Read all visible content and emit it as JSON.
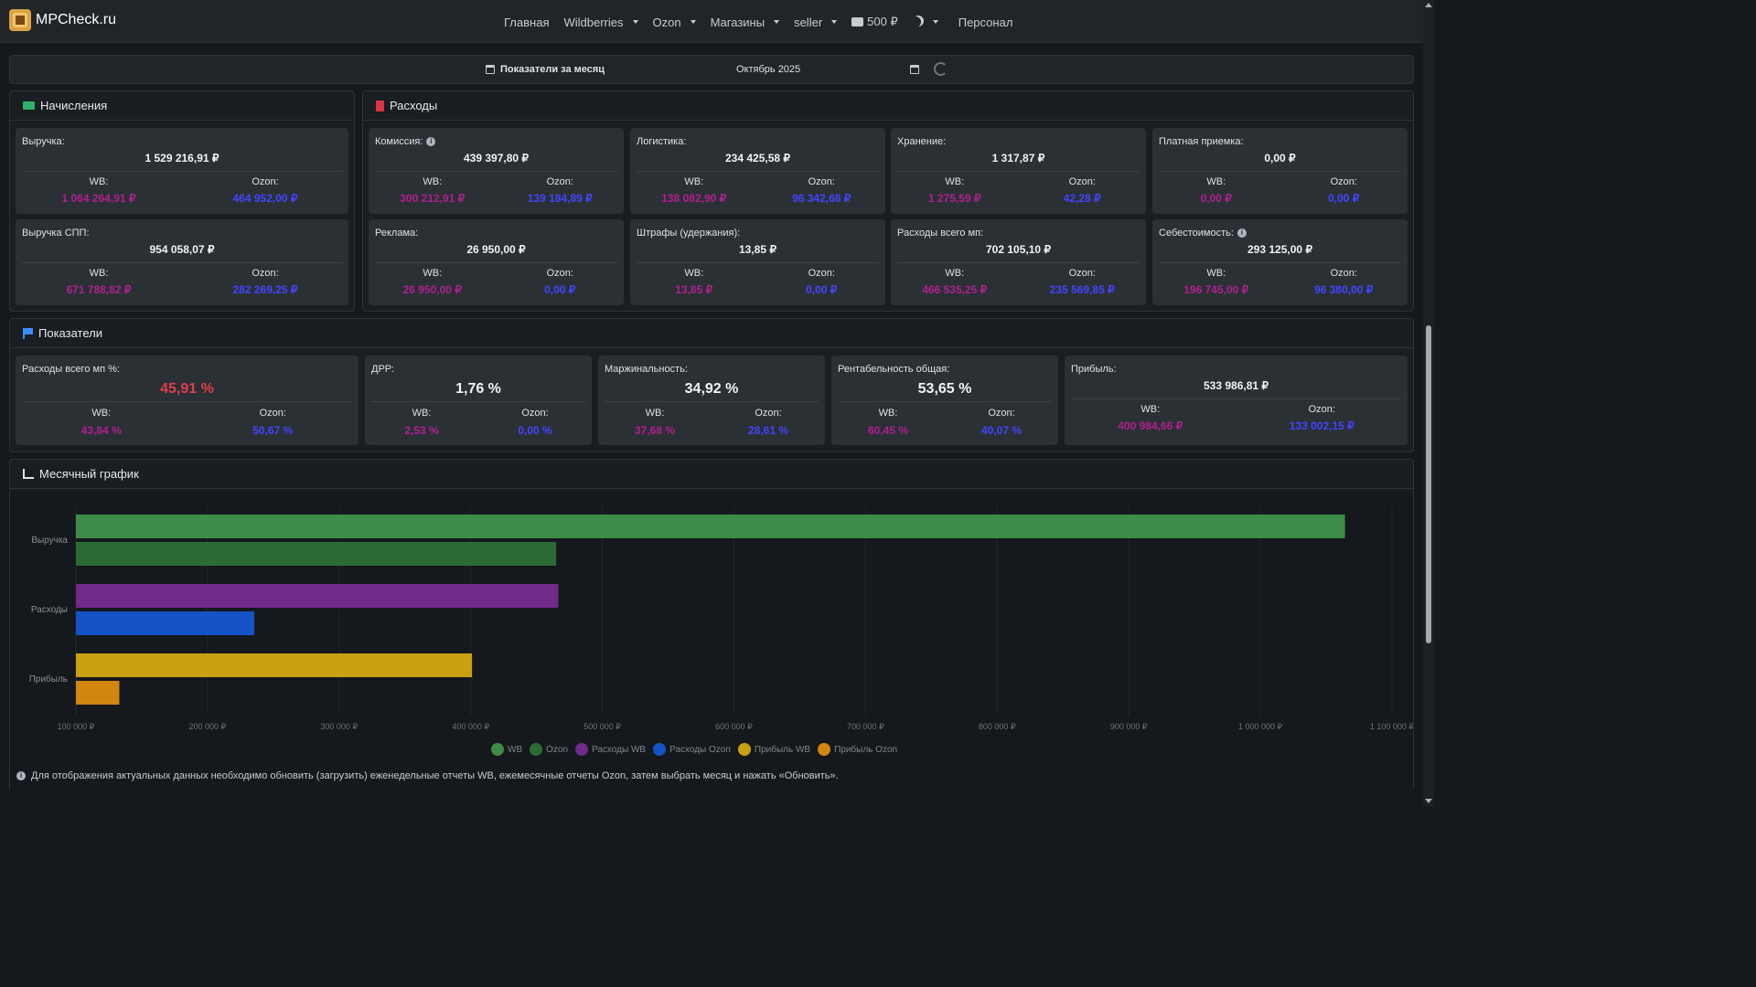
{
  "navbar": {
    "brand": "MPCheck.ru",
    "items": [
      {
        "label": "Главная",
        "dropdown": false
      },
      {
        "label": "Wildberries",
        "dropdown": true
      },
      {
        "label": "Ozon",
        "dropdown": true
      },
      {
        "label": "Магазины",
        "dropdown": true
      },
      {
        "label": "seller",
        "dropdown": true
      }
    ],
    "balance": "500 ₽",
    "personal": "Персонал"
  },
  "period": {
    "label": "Показатели за месяц",
    "value": "Октябрь 2025"
  },
  "accruals": {
    "title": "Начисления",
    "cards": [
      {
        "label": "Выручка:",
        "total": "1 529 216,91 ₽",
        "wb_label": "WB:",
        "wb": "1 064 264,91 ₽",
        "ozon_label": "Ozon:",
        "ozon": "464 952,00 ₽"
      },
      {
        "label": "Выручка СПП:",
        "total": "954 058,07 ₽",
        "wb_label": "WB:",
        "wb": "671 788,82 ₽",
        "ozon_label": "Ozon:",
        "ozon": "282 269,25 ₽"
      }
    ]
  },
  "expenses": {
    "title": "Расходы",
    "cards": [
      {
        "label": "Комиссия:",
        "info": true,
        "total": "439 397,80 ₽",
        "wb_label": "WB:",
        "wb": "300 212,91 ₽",
        "ozon_label": "Ozon:",
        "ozon": "139 184,89 ₽"
      },
      {
        "label": "Логистика:",
        "info": false,
        "total": "234 425,58 ₽",
        "wb_label": "WB:",
        "wb": "138 082,90 ₽",
        "ozon_label": "Ozon:",
        "ozon": "96 342,68 ₽"
      },
      {
        "label": "Хранение:",
        "info": false,
        "total": "1 317,87 ₽",
        "wb_label": "WB:",
        "wb": "1 275,59 ₽",
        "ozon_label": "Ozon:",
        "ozon": "42,28 ₽"
      },
      {
        "label": "Платная приемка:",
        "info": false,
        "total": "0,00 ₽",
        "wb_label": "WB:",
        "wb": "0,00 ₽",
        "ozon_label": "Ozon:",
        "ozon": "0,00 ₽"
      },
      {
        "label": "Реклама:",
        "info": false,
        "total": "26 950,00 ₽",
        "wb_label": "WB:",
        "wb": "26 950,00 ₽",
        "ozon_label": "Ozon:",
        "ozon": "0,00 ₽"
      },
      {
        "label": "Штрафы (удержания):",
        "info": false,
        "total": "13,85 ₽",
        "wb_label": "WB:",
        "wb": "13,85 ₽",
        "ozon_label": "Ozon:",
        "ozon": "0,00 ₽"
      },
      {
        "label": "Расходы всего мп:",
        "info": false,
        "total": "702 105,10 ₽",
        "wb_label": "WB:",
        "wb": "466 535,25 ₽",
        "ozon_label": "Ozon:",
        "ozon": "235 569,85 ₽"
      },
      {
        "label": "Себестоимость:",
        "info": true,
        "total": "293 125,00 ₽",
        "wb_label": "WB:",
        "wb": "196 745,00 ₽",
        "ozon_label": "Ozon:",
        "ozon": "96 380,00 ₽"
      }
    ]
  },
  "indicators": {
    "title": "Показатели",
    "cards": [
      {
        "label": "Расходы всего мп %:",
        "total": "45,91 %",
        "wb_label": "WB:",
        "wb": "43,84 %",
        "ozon_label": "Ozon:",
        "ozon": "50,67 %"
      },
      {
        "label": "ДРР:",
        "total": "1,76 %",
        "wb_label": "WB:",
        "wb": "2,53 %",
        "ozon_label": "Ozon:",
        "ozon": "0,00 %"
      },
      {
        "label": "Маржинальность:",
        "total": "34,92 %",
        "wb_label": "WB:",
        "wb": "37,68 %",
        "ozon_label": "Ozon:",
        "ozon": "28,61 %"
      },
      {
        "label": "Рентабельность общая:",
        "total": "53,65 %",
        "wb_label": "WB:",
        "wb": "60,45 %",
        "ozon_label": "Ozon:",
        "ozon": "40,07 %"
      },
      {
        "label": "Прибыль:",
        "total": "533 986,81 ₽",
        "wb_label": "WB:",
        "wb": "400 984,66 ₽",
        "ozon_label": "Ozon:",
        "ozon": "133 002,15 ₽"
      }
    ],
    "total_highlight_color": "#e03e4b"
  },
  "monthly_chart_title": "Месячный график",
  "chart_data": {
    "type": "bar",
    "orientation": "horizontal",
    "categories": [
      "Выручка",
      "Расходы",
      "Прибыль"
    ],
    "series": [
      {
        "name": "WB",
        "color": "#3d8c47",
        "values": [
          1064264.91,
          null,
          null
        ]
      },
      {
        "name": "Ozon",
        "color": "#2d6a35",
        "values": [
          464952.0,
          null,
          null
        ]
      },
      {
        "name": "Расходы WB",
        "color": "#6f2a8a",
        "values": [
          null,
          466535.25,
          null
        ]
      },
      {
        "name": "Расходы Ozon",
        "color": "#1554c7",
        "values": [
          null,
          235569.85,
          null
        ]
      },
      {
        "name": "Прибыль WB",
        "color": "#c9a010",
        "values": [
          null,
          null,
          400984.66
        ]
      },
      {
        "name": "Прибыль Ozon",
        "color": "#d0860f",
        "values": [
          null,
          null,
          133002.15
        ]
      }
    ],
    "xlim": [
      100000,
      1100000
    ],
    "xticks": [
      "100 000 ₽",
      "200 000 ₽",
      "300 000 ₽",
      "400 000 ₽",
      "500 000 ₽",
      "600 000 ₽",
      "700 000 ₽",
      "800 000 ₽",
      "900 000 ₽",
      "1 000 000 ₽",
      "1 100 000 ₽"
    ],
    "legend_position": "bottom"
  },
  "note": "Для отображения актуальных данных необходимо обновить (загрузить) еженедельные отчеты WB, ежемесячные отчеты Ozon, затем выбрать месяц и нажать «Обновить»."
}
